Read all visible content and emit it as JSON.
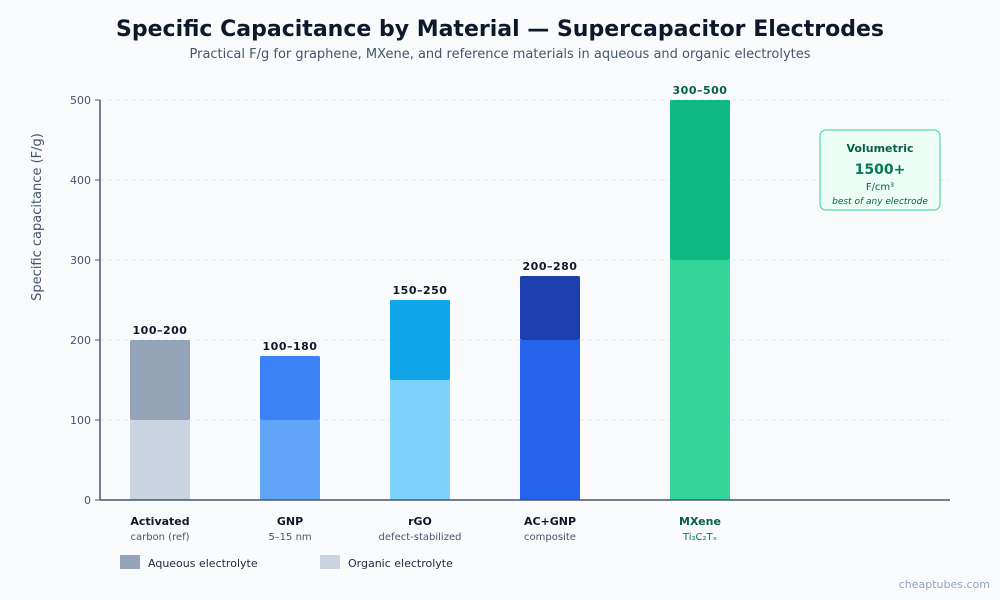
{
  "chart_data": {
    "type": "bar",
    "title": "Specific Capacitance by Material — Supercapacitor Electrodes",
    "subtitle": "Practical F/g for graphene, MXene, and reference materials in aqueous and organic electrolytes",
    "ylabel": "Specific capacitance (F/g)",
    "ylim": [
      0,
      500
    ],
    "yticks": [
      0,
      100,
      200,
      300,
      400,
      500
    ],
    "grid": true,
    "categories": [
      {
        "name": "Activated",
        "sub": "carbon (ref)",
        "low": 100,
        "high": 200,
        "label": "100–200",
        "color_low": "#cbd5e1",
        "color_high": "#94a3b8",
        "name_color": "#0f172a",
        "sub_color": "#475569"
      },
      {
        "name": "GNP",
        "sub": "5–15 nm",
        "low": 100,
        "high": 180,
        "label": "100–180",
        "color_low": "#60a5fa",
        "color_high": "#3b82f6",
        "name_color": "#0f172a",
        "sub_color": "#475569"
      },
      {
        "name": "rGO",
        "sub": "defect-stabilized",
        "low": 150,
        "high": 250,
        "label": "150–250",
        "color_low": "#7dd3fc",
        "color_high": "#0ea5e9",
        "name_color": "#0f172a",
        "sub_color": "#475569"
      },
      {
        "name": "AC+GNP",
        "sub": "composite",
        "low": 200,
        "high": 280,
        "label": "200–280",
        "color_low": "#2563eb",
        "color_high": "#1e40af",
        "name_color": "#0f172a",
        "sub_color": "#475569"
      },
      {
        "name": "MXene",
        "sub": "Ti₃C₂Tₓ",
        "low": 300,
        "high": 500,
        "label": "300–500",
        "color_low": "#34d399",
        "color_high": "#10b981",
        "name_color": "#065f46",
        "sub_color": "#047857"
      }
    ],
    "legend": [
      {
        "label": "Aqueous electrolyte",
        "color": "#94a3b8"
      },
      {
        "label": "Organic electrolyte",
        "color": "#cbd5e1"
      }
    ],
    "legend_position": "bottom-left",
    "annotation": {
      "title": "Volumetric",
      "value": "1500+",
      "unit": "F/cm³",
      "note": "best of any electrode",
      "border_color": "#34d399",
      "fill_color": "#ecfdf5"
    }
  },
  "watermark": "cheaptubes.com"
}
